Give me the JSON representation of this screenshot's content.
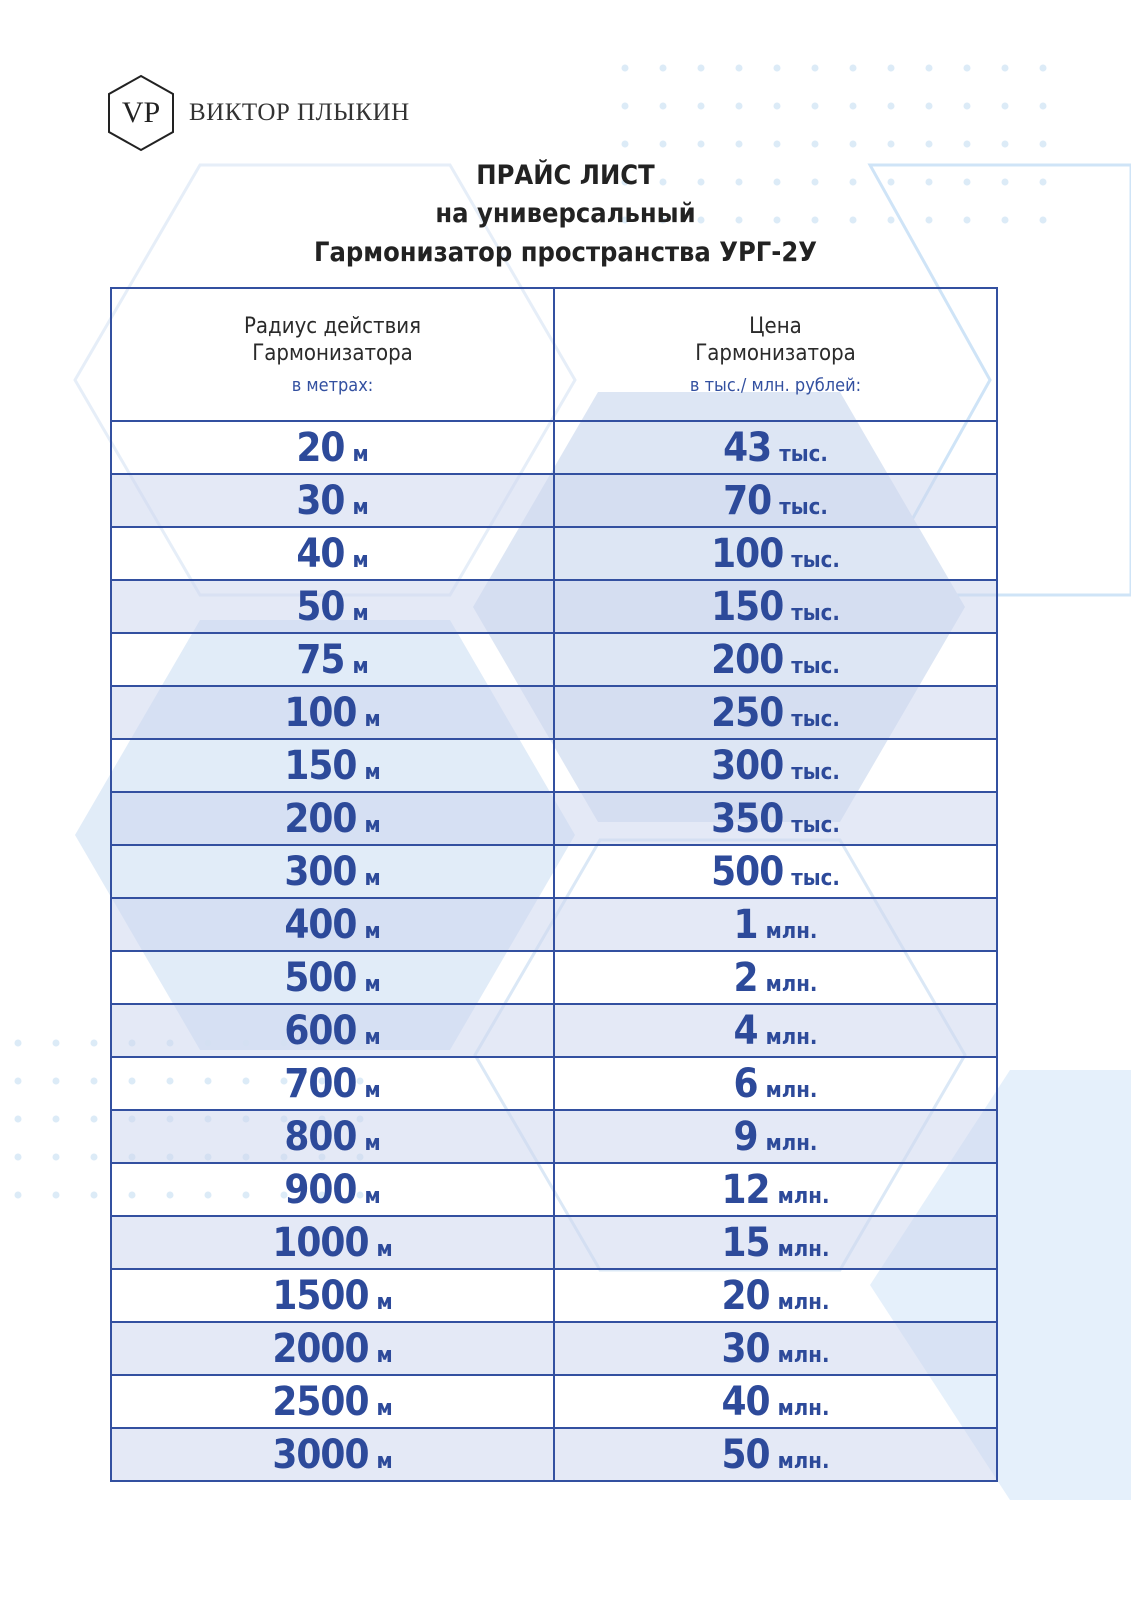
{
  "logo": {
    "initials": "VP",
    "name": "ВИКТОР ПЛЫКИН"
  },
  "title": {
    "line1": "ПРАЙС  ЛИСТ",
    "line2": "на  универсальный",
    "line3": "Гармонизатор  пространства  УРГ-2У"
  },
  "table": {
    "headers": [
      {
        "line1": "Радиус действия",
        "line2": "Гармонизатора",
        "sub": "в метрах:"
      },
      {
        "line1": "Цена",
        "line2": "Гармонизатора",
        "sub": "в тыс./ млн. рублей:"
      }
    ],
    "rows": [
      {
        "radius": "20",
        "radius_unit": "м",
        "price": "43",
        "price_unit": "тыс."
      },
      {
        "radius": "30",
        "radius_unit": "м",
        "price": "70",
        "price_unit": "тыс."
      },
      {
        "radius": "40",
        "radius_unit": "м",
        "price": "100",
        "price_unit": "тыс."
      },
      {
        "radius": "50",
        "radius_unit": "м",
        "price": "150",
        "price_unit": "тыс."
      },
      {
        "radius": "75",
        "radius_unit": "м",
        "price": "200",
        "price_unit": "тыс."
      },
      {
        "radius": "100",
        "radius_unit": "м",
        "price": "250",
        "price_unit": "тыс."
      },
      {
        "radius": "150",
        "radius_unit": "м",
        "price": "300",
        "price_unit": "тыс."
      },
      {
        "radius": "200",
        "radius_unit": "м",
        "price": "350",
        "price_unit": "тыс."
      },
      {
        "radius": "300",
        "radius_unit": "м",
        "price": "500",
        "price_unit": "тыс."
      },
      {
        "radius": "400",
        "radius_unit": "м",
        "price": "1",
        "price_unit": "млн."
      },
      {
        "radius": "500",
        "radius_unit": "м",
        "price": "2",
        "price_unit": "млн."
      },
      {
        "radius": "600",
        "radius_unit": "м",
        "price": "4",
        "price_unit": "млн."
      },
      {
        "radius": "700",
        "radius_unit": "м",
        "price": "6",
        "price_unit": "млн."
      },
      {
        "radius": "800",
        "radius_unit": "м",
        "price": "9",
        "price_unit": "млн."
      },
      {
        "radius": "900",
        "radius_unit": "м",
        "price": "12",
        "price_unit": "млн."
      },
      {
        "radius": "1000",
        "radius_unit": "м",
        "price": "15",
        "price_unit": "млн."
      },
      {
        "radius": "1500",
        "radius_unit": "м",
        "price": "20",
        "price_unit": "млн."
      },
      {
        "radius": "2000",
        "radius_unit": "м",
        "price": "30",
        "price_unit": "млн."
      },
      {
        "radius": "2500",
        "radius_unit": "м",
        "price": "40",
        "price_unit": "млн."
      },
      {
        "radius": "3000",
        "radius_unit": "м",
        "price": "50",
        "price_unit": "млн."
      }
    ]
  },
  "colors": {
    "accent": "#2d4a9a",
    "row_alt": "#e3e8f4",
    "border": "#3350a0"
  }
}
